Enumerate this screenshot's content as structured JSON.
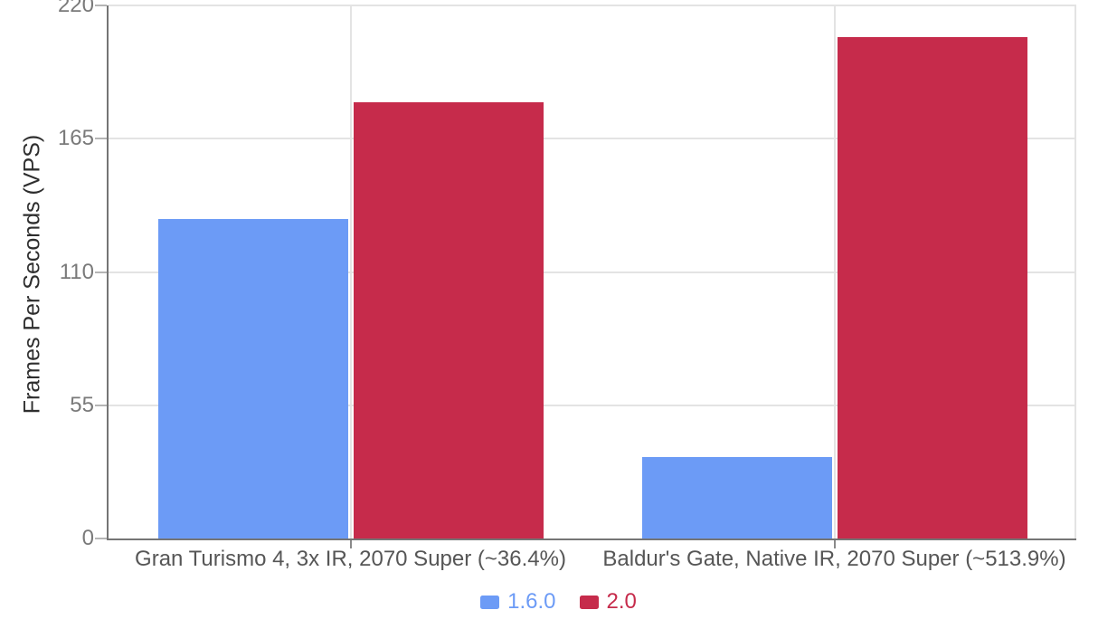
{
  "chart_data": {
    "type": "bar",
    "categories": [
      "Gran Turismo 4, 3x IR, 2070 Super (~36.4%)",
      "Baldur's Gate, Native IR, 2070 Super (~513.9%)"
    ],
    "series": [
      {
        "name": "1.6.0",
        "color": "#6c9bf6",
        "values": [
          132,
          33.7
        ]
      },
      {
        "name": "2.0",
        "color": "#c62b4b",
        "values": [
          180,
          207
        ]
      }
    ],
    "title": "",
    "xlabel": "",
    "ylabel": "Frames Per Seconds (VPS)",
    "y_ticks": [
      220,
      165,
      110,
      55,
      0
    ],
    "ylim": [
      0,
      220
    ],
    "grid": true,
    "legend_position": "bottom"
  },
  "colors": {
    "background": "#ffffff",
    "axis_line": "#757575",
    "gridline": "#e3e3e3",
    "tick_label": "#7a7a7a",
    "category_label": "#565656",
    "axis_title": "#2e2e2e"
  }
}
